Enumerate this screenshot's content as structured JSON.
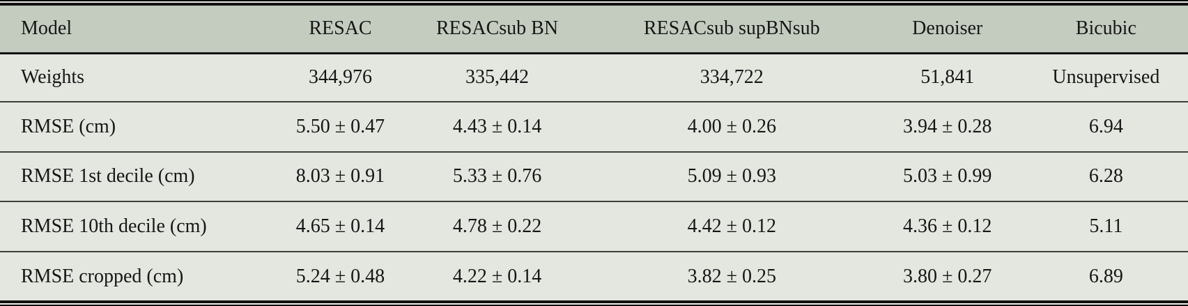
{
  "table": {
    "columns": [
      "Model",
      "RESAC",
      "RESACsub BN",
      "RESACsub supBNsub",
      "Denoiser",
      "Bicubic"
    ],
    "rows": [
      {
        "label": "Weights",
        "values": [
          "344,976",
          "335,442",
          "334,722",
          "51,841",
          "Unsupervised"
        ]
      },
      {
        "label": "RMSE (cm)",
        "values": [
          "5.50 ± 0.47",
          "4.43 ± 0.14",
          "4.00 ± 0.26",
          "3.94 ± 0.28",
          "6.94"
        ]
      },
      {
        "label": "RMSE 1st decile (cm)",
        "values": [
          "8.03 ± 0.91",
          "5.33 ± 0.76",
          "5.09 ± 0.93",
          "5.03 ± 0.99",
          "6.28"
        ]
      },
      {
        "label": "RMSE 10th decile (cm)",
        "values": [
          "4.65 ± 0.14",
          "4.78 ± 0.22",
          "4.42 ± 0.12",
          "4.36 ± 0.12",
          "5.11"
        ]
      },
      {
        "label": "RMSE cropped (cm)",
        "values": [
          "5.24 ± 0.48",
          "4.22 ± 0.14",
          "3.82 ± 0.25",
          "3.80 ± 0.27",
          "6.89"
        ]
      }
    ],
    "colors": {
      "header_bg": "#c4ccc0",
      "body_bg": "#e4e7e0",
      "rule_heavy": "#101010",
      "rule_light": "#3c3f3a",
      "text": "#161616"
    }
  }
}
